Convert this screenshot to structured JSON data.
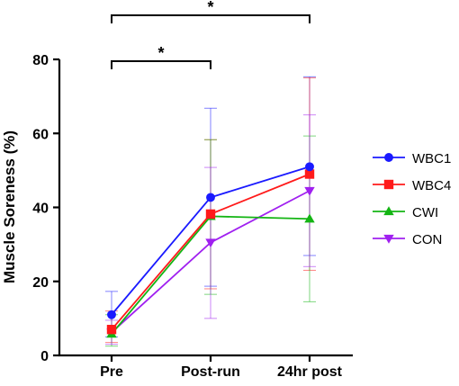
{
  "chart_data": {
    "type": "line",
    "title": "",
    "xlabel": "",
    "ylabel": "Muscle Soreness (%)",
    "categories": [
      "Pre",
      "Post-run",
      "24hr post"
    ],
    "ylim": [
      0,
      80
    ],
    "yticks": [
      0,
      20,
      40,
      60,
      80
    ],
    "grid": false,
    "legend_position": "right",
    "series": [
      {
        "name": "WBC1",
        "color": "#1a1aff",
        "marker": "circle",
        "values": [
          11,
          42.7,
          51
        ],
        "err_low": [
          5,
          18.7,
          27
        ],
        "err_high": [
          17.3,
          66.8,
          75.3
        ]
      },
      {
        "name": "WBC4",
        "color": "#ff1a1a",
        "marker": "square",
        "values": [
          7,
          38.2,
          49
        ],
        "err_low": [
          3.5,
          18,
          23
        ],
        "err_high": [
          12,
          58.3,
          75
        ]
      },
      {
        "name": "CWI",
        "color": "#14b514",
        "marker": "triangle-up",
        "values": [
          5.8,
          37.6,
          36.9
        ],
        "err_low": [
          2.5,
          16.5,
          14.5
        ],
        "err_high": [
          11,
          58.3,
          59.3
        ]
      },
      {
        "name": "CON",
        "color": "#a020f0",
        "marker": "triangle-down",
        "values": [
          6.2,
          30.5,
          44.5
        ],
        "err_low": [
          3,
          10,
          24
        ],
        "err_high": [
          9.5,
          50.8,
          65
        ]
      }
    ],
    "annotations": [
      {
        "from": "Pre",
        "to": "24hr post",
        "text": "*",
        "level": "upper"
      },
      {
        "from": "Pre",
        "to": "Post-run",
        "text": "*",
        "level": "lower"
      }
    ]
  }
}
